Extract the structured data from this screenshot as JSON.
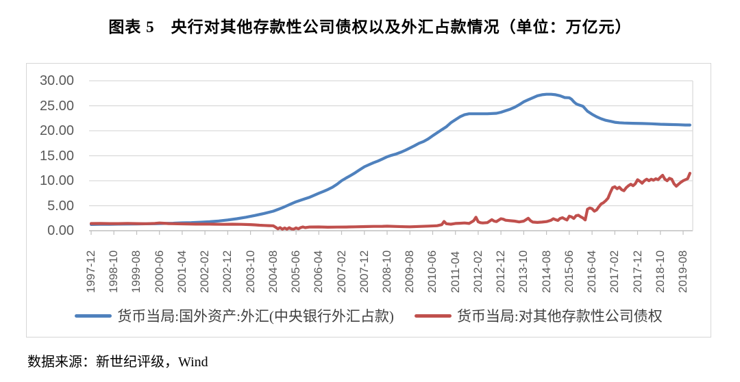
{
  "title": "图表 5　央行对其他存款性公司债权以及外汇占款情况（单位：万亿元）",
  "source": "数据来源：新世纪评级，Wind",
  "colors": {
    "series_blue": "#4F81BD",
    "series_red": "#C0504D",
    "grid": "#D9D9D9",
    "axis": "#BFBFBF",
    "tick_label": "#595959",
    "legend_text": "#3F3F3F"
  },
  "chart_data": {
    "type": "line",
    "title": "央行对其他存款性公司债权以及外汇占款情况",
    "unit": "万亿元",
    "grid": "horizontal",
    "legend_position": "bottom",
    "ylim": [
      0,
      30
    ],
    "y_ticks": [
      0,
      5,
      10,
      15,
      20,
      25,
      30
    ],
    "y_tick_labels": [
      "0.00",
      "5.00",
      "10.00",
      "15.00",
      "20.00",
      "25.00",
      "30.00"
    ],
    "x_start": "1997-12",
    "x_tick_interval_months": 10,
    "x_tick_labels": [
      "1997-12",
      "1998-10",
      "1999-08",
      "2000-06",
      "2001-04",
      "2002-02",
      "2002-12",
      "2003-10",
      "2004-08",
      "2005-06",
      "2006-04",
      "2007-02",
      "2007-12",
      "2008-10",
      "2009-08",
      "2010-06",
      "2011-04",
      "2012-02",
      "2012-12",
      "2013-10",
      "2014-08",
      "2015-06",
      "2016-04",
      "2017-02",
      "2017-12",
      "2018-10",
      "2019-08"
    ],
    "series": [
      {
        "name": "货币当局:国外资产:外汇(中央银行外汇占款)",
        "color": "#4F81BD",
        "points_x_months_from_start": true,
        "points": [
          [
            0,
            1.25
          ],
          [
            4,
            1.27
          ],
          [
            8,
            1.29
          ],
          [
            12,
            1.31
          ],
          [
            16,
            1.33
          ],
          [
            20,
            1.36
          ],
          [
            24,
            1.38
          ],
          [
            28,
            1.4
          ],
          [
            32,
            1.45
          ],
          [
            36,
            1.5
          ],
          [
            40,
            1.57
          ],
          [
            44,
            1.62
          ],
          [
            48,
            1.7
          ],
          [
            52,
            1.8
          ],
          [
            56,
            1.95
          ],
          [
            60,
            2.15
          ],
          [
            64,
            2.4
          ],
          [
            68,
            2.7
          ],
          [
            72,
            3.05
          ],
          [
            76,
            3.45
          ],
          [
            80,
            3.9
          ],
          [
            82,
            4.25
          ],
          [
            84,
            4.6
          ],
          [
            86,
            5.0
          ],
          [
            88,
            5.4
          ],
          [
            90,
            5.8
          ],
          [
            92,
            6.1
          ],
          [
            94,
            6.4
          ],
          [
            96,
            6.7
          ],
          [
            98,
            7.1
          ],
          [
            100,
            7.5
          ],
          [
            102,
            7.85
          ],
          [
            104,
            8.25
          ],
          [
            106,
            8.7
          ],
          [
            108,
            9.3
          ],
          [
            110,
            10.0
          ],
          [
            112,
            10.55
          ],
          [
            114,
            11.05
          ],
          [
            116,
            11.6
          ],
          [
            118,
            12.2
          ],
          [
            120,
            12.8
          ],
          [
            122,
            13.2
          ],
          [
            124,
            13.6
          ],
          [
            126,
            13.95
          ],
          [
            128,
            14.35
          ],
          [
            130,
            14.8
          ],
          [
            132,
            15.1
          ],
          [
            134,
            15.35
          ],
          [
            136,
            15.7
          ],
          [
            138,
            16.1
          ],
          [
            140,
            16.55
          ],
          [
            142,
            17.0
          ],
          [
            144,
            17.5
          ],
          [
            146,
            17.85
          ],
          [
            148,
            18.35
          ],
          [
            150,
            19.0
          ],
          [
            152,
            19.6
          ],
          [
            154,
            20.2
          ],
          [
            156,
            20.8
          ],
          [
            158,
            21.6
          ],
          [
            160,
            22.2
          ],
          [
            162,
            22.8
          ],
          [
            164,
            23.2
          ],
          [
            166,
            23.4
          ],
          [
            170,
            23.4
          ],
          [
            174,
            23.4
          ],
          [
            178,
            23.5
          ],
          [
            180,
            23.7
          ],
          [
            182,
            24.0
          ],
          [
            184,
            24.3
          ],
          [
            186,
            24.7
          ],
          [
            188,
            25.2
          ],
          [
            190,
            25.8
          ],
          [
            192,
            26.2
          ],
          [
            194,
            26.6
          ],
          [
            196,
            27.0
          ],
          [
            198,
            27.2
          ],
          [
            200,
            27.3
          ],
          [
            202,
            27.3
          ],
          [
            204,
            27.2
          ],
          [
            206,
            27.0
          ],
          [
            208,
            26.65
          ],
          [
            210,
            26.6
          ],
          [
            211,
            26.3
          ],
          [
            212,
            25.8
          ],
          [
            213,
            25.4
          ],
          [
            214,
            25.2
          ],
          [
            216,
            24.9
          ],
          [
            217,
            24.4
          ],
          [
            218,
            23.9
          ],
          [
            220,
            23.3
          ],
          [
            222,
            22.8
          ],
          [
            224,
            22.4
          ],
          [
            226,
            22.1
          ],
          [
            228,
            21.9
          ],
          [
            230,
            21.7
          ],
          [
            232,
            21.6
          ],
          [
            234,
            21.55
          ],
          [
            238,
            21.5
          ],
          [
            242,
            21.45
          ],
          [
            246,
            21.4
          ],
          [
            250,
            21.3
          ],
          [
            254,
            21.25
          ],
          [
            258,
            21.2
          ],
          [
            261,
            21.15
          ],
          [
            263,
            21.15
          ]
        ]
      },
      {
        "name": "货币当局:对其他存款性公司债权",
        "color": "#C0504D",
        "points_x_months_from_start": true,
        "points": [
          [
            0,
            1.44
          ],
          [
            4,
            1.45
          ],
          [
            8,
            1.42
          ],
          [
            12,
            1.43
          ],
          [
            16,
            1.47
          ],
          [
            20,
            1.43
          ],
          [
            24,
            1.4
          ],
          [
            28,
            1.46
          ],
          [
            30,
            1.55
          ],
          [
            32,
            1.5
          ],
          [
            34,
            1.43
          ],
          [
            38,
            1.38
          ],
          [
            42,
            1.35
          ],
          [
            46,
            1.31
          ],
          [
            50,
            1.33
          ],
          [
            54,
            1.3
          ],
          [
            58,
            1.28
          ],
          [
            62,
            1.3
          ],
          [
            66,
            1.27
          ],
          [
            70,
            1.22
          ],
          [
            72,
            1.16
          ],
          [
            74,
            1.1
          ],
          [
            76,
            1.06
          ],
          [
            78,
            1.02
          ],
          [
            80,
            0.98
          ],
          [
            81,
            0.7
          ],
          [
            82,
            0.38
          ],
          [
            83,
            0.62
          ],
          [
            84,
            0.3
          ],
          [
            85,
            0.55
          ],
          [
            86,
            0.32
          ],
          [
            87,
            0.6
          ],
          [
            88,
            0.36
          ],
          [
            89,
            0.32
          ],
          [
            90,
            0.56
          ],
          [
            91,
            0.38
          ],
          [
            92,
            0.62
          ],
          [
            93,
            0.76
          ],
          [
            94,
            0.62
          ],
          [
            96,
            0.74
          ],
          [
            100,
            0.76
          ],
          [
            104,
            0.7
          ],
          [
            108,
            0.72
          ],
          [
            112,
            0.74
          ],
          [
            116,
            0.78
          ],
          [
            120,
            0.82
          ],
          [
            124,
            0.86
          ],
          [
            128,
            0.88
          ],
          [
            130,
            0.9
          ],
          [
            134,
            0.85
          ],
          [
            138,
            0.8
          ],
          [
            140,
            0.78
          ],
          [
            144,
            0.85
          ],
          [
            148,
            0.92
          ],
          [
            152,
            1.0
          ],
          [
            154,
            1.2
          ],
          [
            155,
            1.85
          ],
          [
            156,
            1.4
          ],
          [
            158,
            1.3
          ],
          [
            160,
            1.45
          ],
          [
            162,
            1.5
          ],
          [
            164,
            1.55
          ],
          [
            166,
            1.45
          ],
          [
            168,
            2.0
          ],
          [
            169,
            2.7
          ],
          [
            170,
            1.8
          ],
          [
            171,
            1.6
          ],
          [
            172,
            1.55
          ],
          [
            174,
            1.62
          ],
          [
            176,
            2.2
          ],
          [
            177,
            1.92
          ],
          [
            178,
            1.82
          ],
          [
            180,
            2.4
          ],
          [
            181,
            2.3
          ],
          [
            182,
            2.1
          ],
          [
            184,
            2.0
          ],
          [
            186,
            1.92
          ],
          [
            188,
            1.76
          ],
          [
            190,
            1.92
          ],
          [
            192,
            2.5
          ],
          [
            193,
            2.0
          ],
          [
            194,
            1.72
          ],
          [
            196,
            1.66
          ],
          [
            198,
            1.72
          ],
          [
            200,
            1.82
          ],
          [
            202,
            2.1
          ],
          [
            203,
            2.4
          ],
          [
            204,
            2.2
          ],
          [
            205,
            2.05
          ],
          [
            206,
            2.45
          ],
          [
            207,
            2.6
          ],
          [
            208,
            2.35
          ],
          [
            209,
            2.15
          ],
          [
            210,
            2.9
          ],
          [
            211,
            2.75
          ],
          [
            212,
            2.45
          ],
          [
            213,
            3.0
          ],
          [
            214,
            3.1
          ],
          [
            215,
            2.8
          ],
          [
            216,
            2.55
          ],
          [
            217,
            2.15
          ],
          [
            218,
            4.3
          ],
          [
            219,
            4.55
          ],
          [
            220,
            4.4
          ],
          [
            221,
            3.9
          ],
          [
            222,
            4.15
          ],
          [
            223,
            4.8
          ],
          [
            224,
            5.35
          ],
          [
            225,
            5.6
          ],
          [
            226,
            6.0
          ],
          [
            227,
            6.5
          ],
          [
            228,
            7.6
          ],
          [
            229,
            8.6
          ],
          [
            230,
            8.8
          ],
          [
            231,
            8.4
          ],
          [
            232,
            8.7
          ],
          [
            233,
            8.2
          ],
          [
            234,
            8.0
          ],
          [
            235,
            8.6
          ],
          [
            236,
            9.0
          ],
          [
            237,
            9.3
          ],
          [
            238,
            9.0
          ],
          [
            239,
            9.4
          ],
          [
            240,
            10.2
          ],
          [
            241,
            9.9
          ],
          [
            242,
            9.5
          ],
          [
            243,
            10.0
          ],
          [
            244,
            10.3
          ],
          [
            245,
            10.0
          ],
          [
            246,
            10.3
          ],
          [
            247,
            10.1
          ],
          [
            248,
            10.4
          ],
          [
            249,
            10.2
          ],
          [
            250,
            10.7
          ],
          [
            251,
            11.1
          ],
          [
            252,
            10.3
          ],
          [
            253,
            10.0
          ],
          [
            254,
            10.5
          ],
          [
            255,
            10.3
          ],
          [
            256,
            9.4
          ],
          [
            257,
            8.9
          ],
          [
            258,
            9.3
          ],
          [
            259,
            9.7
          ],
          [
            260,
            10.0
          ],
          [
            261,
            10.2
          ],
          [
            262,
            10.4
          ],
          [
            263,
            11.5
          ]
        ]
      }
    ]
  }
}
